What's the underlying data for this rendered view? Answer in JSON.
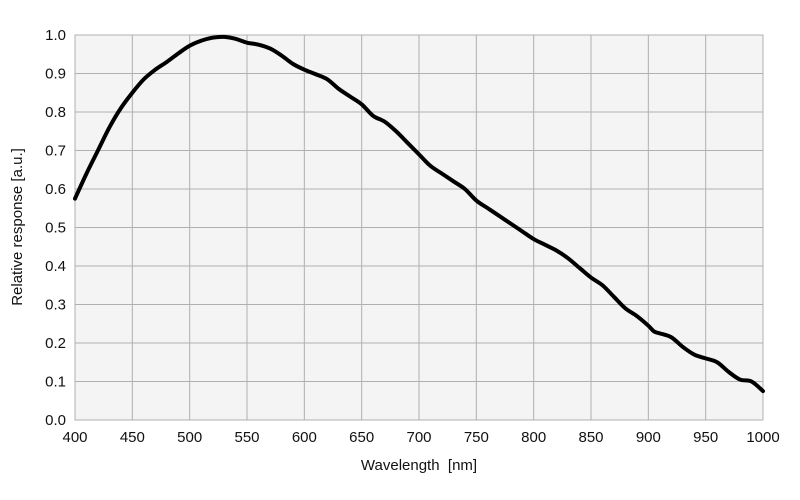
{
  "chart_data": {
    "type": "line",
    "title": "",
    "xlabel": "Wavelength  [nm]",
    "ylabel": "Relative response [a.u.]",
    "xlim": [
      400,
      1000
    ],
    "ylim": [
      0.0,
      1.0
    ],
    "x_ticks": [
      "400",
      "450",
      "500",
      "550",
      "600",
      "650",
      "700",
      "750",
      "800",
      "850",
      "900",
      "950",
      "1000"
    ],
    "y_ticks": [
      "0.0",
      "0.1",
      "0.2",
      "0.3",
      "0.4",
      "0.5",
      "0.6",
      "0.7",
      "0.8",
      "0.9",
      "1.0"
    ],
    "grid": true,
    "legend": "none",
    "series": [
      {
        "color": "#000000",
        "x": [
          400,
          410,
          420,
          430,
          440,
          450,
          460,
          470,
          480,
          490,
          500,
          510,
          520,
          530,
          540,
          550,
          560,
          570,
          580,
          590,
          600,
          610,
          620,
          630,
          640,
          650,
          660,
          670,
          680,
          690,
          700,
          710,
          720,
          730,
          740,
          750,
          760,
          770,
          780,
          790,
          800,
          810,
          820,
          830,
          840,
          850,
          860,
          870,
          880,
          890,
          900,
          905,
          910,
          920,
          930,
          940,
          950,
          960,
          970,
          980,
          990,
          1000
        ],
        "y": [
          0.575,
          0.64,
          0.7,
          0.76,
          0.81,
          0.85,
          0.885,
          0.91,
          0.93,
          0.952,
          0.972,
          0.985,
          0.993,
          0.995,
          0.99,
          0.98,
          0.975,
          0.965,
          0.947,
          0.925,
          0.91,
          0.898,
          0.885,
          0.86,
          0.84,
          0.82,
          0.79,
          0.775,
          0.75,
          0.72,
          0.69,
          0.66,
          0.64,
          0.62,
          0.6,
          0.57,
          0.55,
          0.53,
          0.51,
          0.49,
          0.47,
          0.455,
          0.44,
          0.42,
          0.395,
          0.37,
          0.35,
          0.32,
          0.29,
          0.27,
          0.245,
          0.23,
          0.225,
          0.215,
          0.19,
          0.17,
          0.16,
          0.15,
          0.125,
          0.105,
          0.1,
          0.075
        ]
      }
    ]
  }
}
